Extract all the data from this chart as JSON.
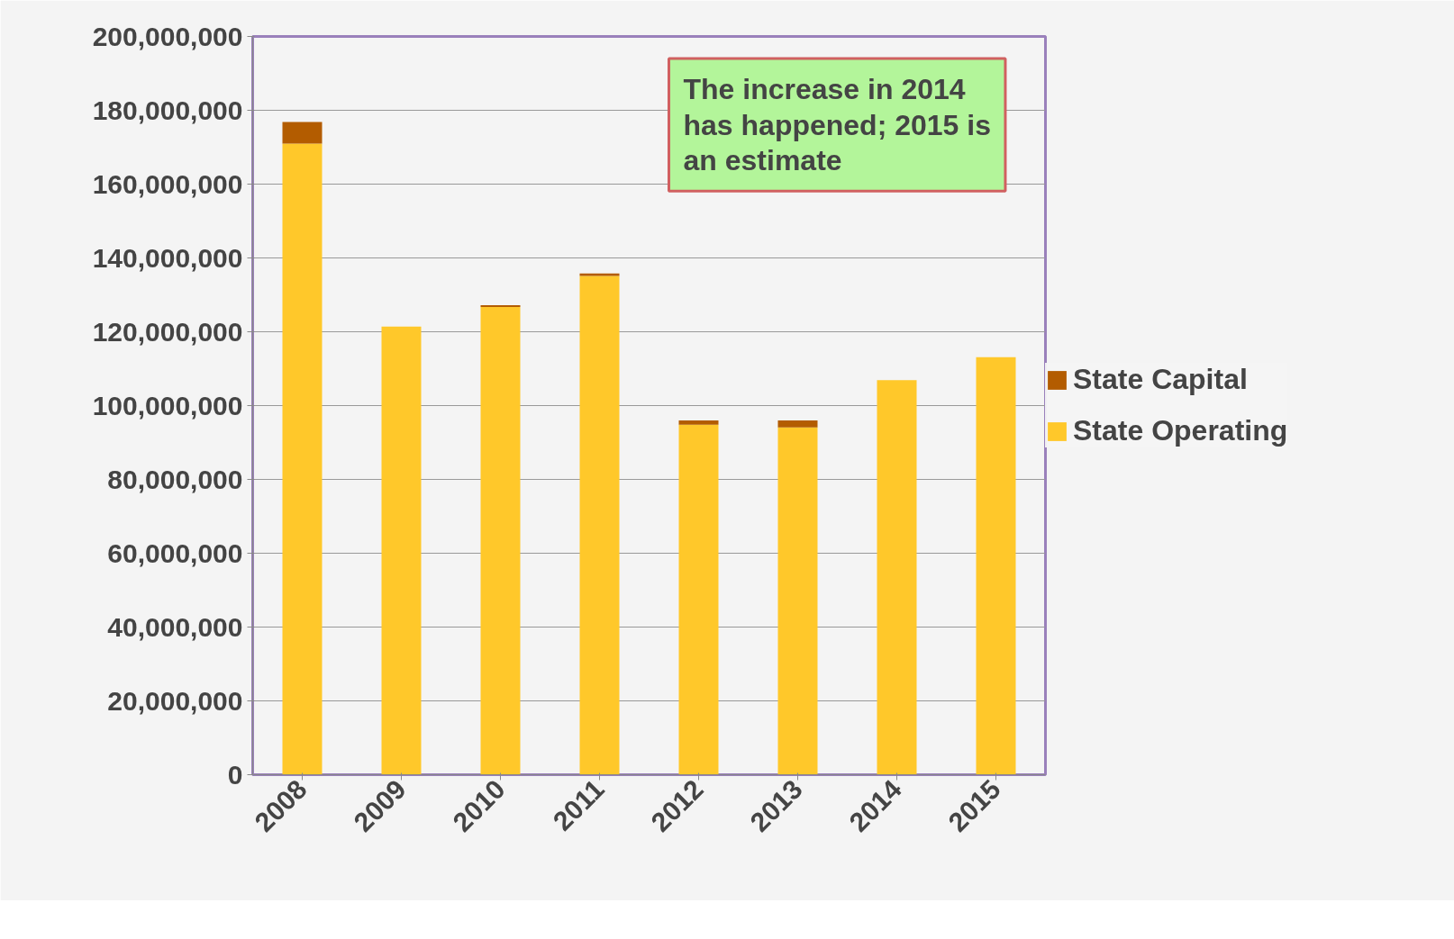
{
  "chart_data": {
    "type": "bar",
    "stacked": true,
    "categories": [
      "2008",
      "2009",
      "2010",
      "2011",
      "2012",
      "2013",
      "2014",
      "2015"
    ],
    "series": [
      {
        "name": "State Operating",
        "color": "#ffc82a",
        "values": [
          171000000,
          121400000,
          126700000,
          135100000,
          94800000,
          94100000,
          106900000,
          113100000
        ]
      },
      {
        "name": "State Capital",
        "color": "#b35c00",
        "values": [
          5800000,
          0,
          500000,
          700000,
          1200000,
          1900000,
          0,
          0
        ]
      }
    ],
    "ylim": [
      0,
      200000000
    ],
    "yticks": [
      {
        "value": 0,
        "label": "0"
      },
      {
        "value": 20000000,
        "label": "20,000,000"
      },
      {
        "value": 40000000,
        "label": "40,000,000"
      },
      {
        "value": 60000000,
        "label": "60,000,000"
      },
      {
        "value": 80000000,
        "label": "80,000,000"
      },
      {
        "value": 100000000,
        "label": "100,000,000"
      },
      {
        "value": 120000000,
        "label": "120,000,000"
      },
      {
        "value": 140000000,
        "label": "140,000,000"
      },
      {
        "value": 160000000,
        "label": "160,000,000"
      },
      {
        "value": 180000000,
        "label": "180,000,000"
      },
      {
        "value": 200000000,
        "label": "200,000,000"
      }
    ],
    "grid": "y",
    "legend": "right",
    "annotations": [
      "The increase in 2014 has happened; 2015 is an estimate"
    ]
  }
}
